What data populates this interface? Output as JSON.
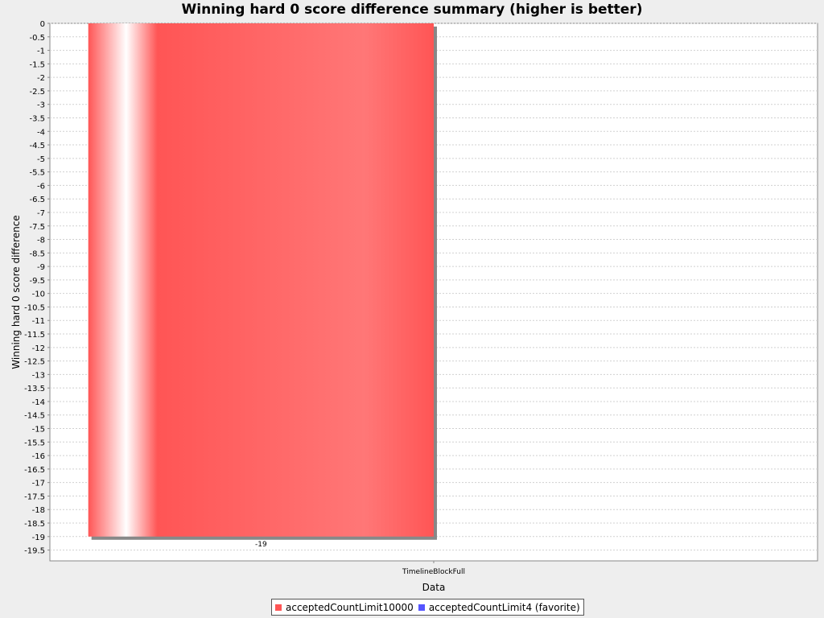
{
  "chart_data": {
    "type": "bar",
    "title": "Winning hard 0 score difference summary (higher is better)",
    "xlabel": "Data",
    "ylabel": "Winning hard 0 score difference",
    "categories": [
      "TimelineBlockFull"
    ],
    "series": [
      {
        "name": "acceptedCountLimit10000",
        "values": [
          -19
        ],
        "color": "#ff5555"
      },
      {
        "name": "acceptedCountLimit4 (favorite)",
        "values": [
          null
        ],
        "color": "#5555ff"
      }
    ],
    "data_labels": [
      "-19"
    ],
    "ylim": [
      -19.9,
      0
    ],
    "ytick_step": 0.5,
    "grid": true,
    "legend_position": "bottom"
  }
}
